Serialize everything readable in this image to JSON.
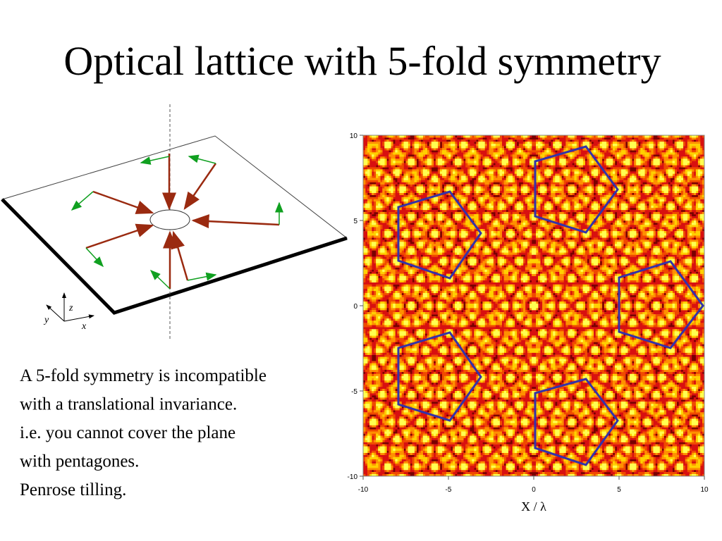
{
  "title": "Optical lattice with 5-fold symmetry",
  "text": [
    "A 5-fold symmetry is incompatible",
    "with a translational invariance.",
    "i.e. you cannot cover the plane",
    "with pentagones.",
    "Penrose tilling."
  ],
  "diagram": {
    "axes": [
      "z",
      "y",
      "x"
    ]
  },
  "plot": {
    "xlim": [
      -10,
      10
    ],
    "ylim": [
      -10,
      10
    ],
    "xticks": [
      -10,
      -5,
      0,
      5,
      10
    ],
    "yticks": [
      -10,
      -5,
      0,
      5,
      10
    ],
    "xlabel": "X / λ"
  }
}
